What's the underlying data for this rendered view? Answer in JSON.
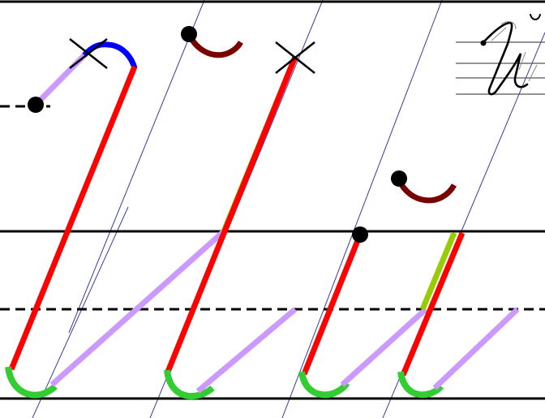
{
  "diagram": {
    "letter_large": "Й",
    "letter_small": "й",
    "colors": {
      "ruling": "#000000",
      "slant_guide": "#3a3a9a",
      "main_stroke": "#ff0000",
      "connector_stroke": "#cc99ff",
      "loop_stroke": "#33cc33",
      "retrace_stroke": "#99cc00",
      "breve_stroke": "#7a0000",
      "cap_stroke": "#0000ff",
      "start_point": "#000000",
      "cross_mark": "#000000"
    },
    "start_points": 4,
    "cross_marks": 2
  }
}
